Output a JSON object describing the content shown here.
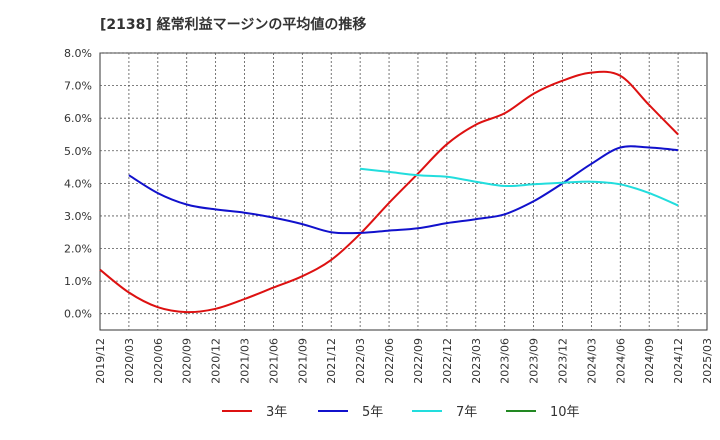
{
  "title": "[2138]  経常利益マージンの平均値の推移",
  "chart_data": {
    "type": "line",
    "title": "[2138]  経常利益マージンの平均値の推移",
    "xlabel": "",
    "ylabel": "",
    "x_ticks": [
      "2019/12",
      "2020/03",
      "2020/06",
      "2020/09",
      "2020/12",
      "2021/03",
      "2021/06",
      "2021/09",
      "2021/12",
      "2022/03",
      "2022/06",
      "2022/09",
      "2022/12",
      "2023/03",
      "2023/06",
      "2023/09",
      "2023/12",
      "2024/03",
      "2024/06",
      "2024/09",
      "2024/12",
      "2025/03"
    ],
    "y_ticks": [
      "0.0%",
      "1.0%",
      "2.0%",
      "3.0%",
      "4.0%",
      "5.0%",
      "6.0%",
      "7.0%",
      "8.0%"
    ],
    "ylim": [
      -0.5,
      8.0
    ],
    "grid": true,
    "legend_position": "bottom",
    "series": [
      {
        "name": "3年",
        "color": "#dd1111",
        "points": [
          [
            "2019/12",
            1.35
          ],
          [
            "2020/03",
            0.65
          ],
          [
            "2020/06",
            0.2
          ],
          [
            "2020/09",
            0.05
          ],
          [
            "2020/12",
            0.15
          ],
          [
            "2021/03",
            0.45
          ],
          [
            "2021/06",
            0.8
          ],
          [
            "2021/09",
            1.15
          ],
          [
            "2021/12",
            1.65
          ],
          [
            "2022/03",
            2.45
          ],
          [
            "2022/06",
            3.4
          ],
          [
            "2022/09",
            4.3
          ],
          [
            "2022/12",
            5.2
          ],
          [
            "2023/03",
            5.8
          ],
          [
            "2023/06",
            6.15
          ],
          [
            "2023/09",
            6.75
          ],
          [
            "2023/12",
            7.15
          ],
          [
            "2024/03",
            7.4
          ],
          [
            "2024/06",
            7.3
          ],
          [
            "2024/09",
            6.4
          ],
          [
            "2024/12",
            5.5
          ]
        ]
      },
      {
        "name": "5年",
        "color": "#1111cc",
        "points": [
          [
            "2020/03",
            4.25
          ],
          [
            "2020/06",
            3.7
          ],
          [
            "2020/09",
            3.35
          ],
          [
            "2020/12",
            3.2
          ],
          [
            "2021/03",
            3.1
          ],
          [
            "2021/06",
            2.95
          ],
          [
            "2021/09",
            2.75
          ],
          [
            "2021/12",
            2.5
          ],
          [
            "2022/03",
            2.48
          ],
          [
            "2022/06",
            2.55
          ],
          [
            "2022/09",
            2.62
          ],
          [
            "2022/12",
            2.78
          ],
          [
            "2023/03",
            2.9
          ],
          [
            "2023/06",
            3.05
          ],
          [
            "2023/09",
            3.45
          ],
          [
            "2023/12",
            4.0
          ],
          [
            "2024/03",
            4.6
          ],
          [
            "2024/06",
            5.1
          ],
          [
            "2024/09",
            5.1
          ],
          [
            "2024/12",
            5.02
          ]
        ]
      },
      {
        "name": "7年",
        "color": "#22dddd",
        "points": [
          [
            "2022/03",
            4.45
          ],
          [
            "2022/06",
            4.35
          ],
          [
            "2022/09",
            4.25
          ],
          [
            "2022/12",
            4.2
          ],
          [
            "2023/03",
            4.05
          ],
          [
            "2023/06",
            3.92
          ],
          [
            "2023/09",
            3.97
          ],
          [
            "2023/12",
            4.02
          ],
          [
            "2024/03",
            4.05
          ],
          [
            "2024/06",
            3.97
          ],
          [
            "2024/09",
            3.7
          ],
          [
            "2024/12",
            3.32
          ]
        ]
      },
      {
        "name": "10年",
        "color": "#228822",
        "points": []
      }
    ]
  }
}
